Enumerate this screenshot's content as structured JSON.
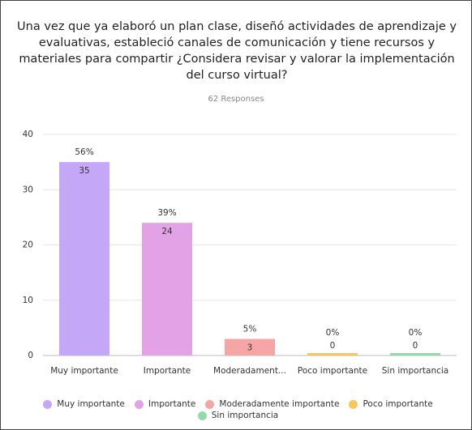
{
  "chart_data": {
    "type": "bar",
    "title": "Una vez que ya elaboró un plan clase, diseñó actividades de aprendizaje y evaluativas, estableció canales de comunicación y tiene recursos y materiales para compartir ¿Considera revisar y valorar la implementación del curso virtual?",
    "subtitle": "62 Responses",
    "categories": [
      "Muy importante",
      "Importante",
      "Moderadament...",
      "Poco importante",
      "Sin importancia"
    ],
    "values": [
      35,
      24,
      3,
      0,
      0
    ],
    "percent_labels": [
      "56%",
      "39%",
      "5%",
      "0%",
      "0%"
    ],
    "colors": [
      "#c5a7f8",
      "#e4a2e6",
      "#f6a5a5",
      "#f8c65c",
      "#92dbab"
    ],
    "legend": [
      {
        "name": "Muy importante",
        "color": "#c5a7f8"
      },
      {
        "name": "Importante",
        "color": "#e4a2e6"
      },
      {
        "name": "Moderadamente importante",
        "color": "#f6a5a5"
      },
      {
        "name": "Poco importante",
        "color": "#f8c65c"
      },
      {
        "name": "Sin importancia",
        "color": "#92dbab"
      }
    ],
    "ylim": [
      0,
      40
    ],
    "yticks": [
      0,
      10,
      20,
      30,
      40
    ],
    "grid": true
  }
}
